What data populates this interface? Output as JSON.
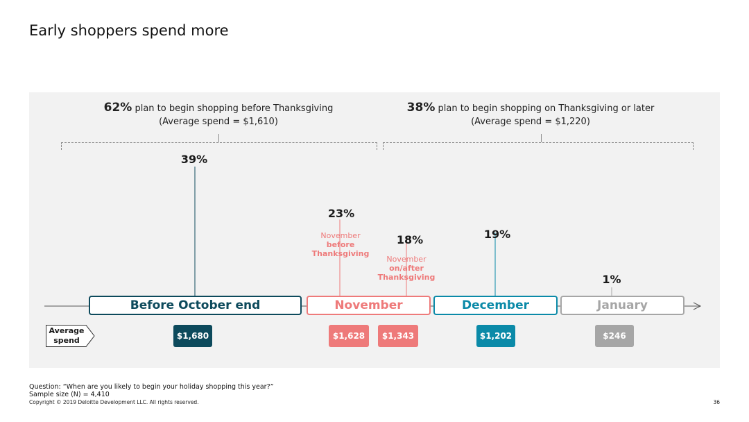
{
  "page": {
    "title": "Early shoppers spend more",
    "question": "Question: “When are you likely to begin your holiday shopping this year?”",
    "sample": "Sample size (N) = 4,410",
    "copyright": "Copyright © 2019 Deloitte Development LLC. All rights reserved.",
    "page_number": "36"
  },
  "groups": [
    {
      "pct": "62%",
      "text": " plan to begin shopping before Thanksgiving",
      "sub": "(Average spend = $1,610)"
    },
    {
      "pct": "38%",
      "text": " plan to begin shopping on Thanksgiving or later",
      "sub": "(Average spend = $1,220)"
    }
  ],
  "avg_label": [
    "Average",
    "spend"
  ],
  "colors": {
    "before_october": "#0d4a5c",
    "november": "#ee7a7a",
    "december": "#0b8aa8",
    "january": "#a6a6a6",
    "panel": "#f2f2f2"
  },
  "chart_data": {
    "type": "bar",
    "title": "Early shoppers spend more",
    "categories": [
      "Before October end",
      "November before Thanksgiving",
      "November on/after Thanksgiving",
      "December",
      "January"
    ],
    "values": [
      39,
      23,
      18,
      19,
      1
    ],
    "value_labels": [
      "39%",
      "23%",
      "18%",
      "19%",
      "1%"
    ],
    "average_spend": [
      1680,
      1628,
      1343,
      1202,
      246
    ],
    "average_spend_labels": [
      "$1,680",
      "$1,628",
      "$1,343",
      "$1,202",
      "$246"
    ],
    "month_labels": [
      "Before October end",
      "November",
      "December",
      "January"
    ],
    "november_sub_labels": [
      {
        "line1": "November",
        "line2": "before",
        "line3": "Thanksgiving"
      },
      {
        "line1": "November",
        "line2": "on/after",
        "line3": "Thanksgiving"
      }
    ],
    "ylim": [
      0,
      39
    ]
  }
}
